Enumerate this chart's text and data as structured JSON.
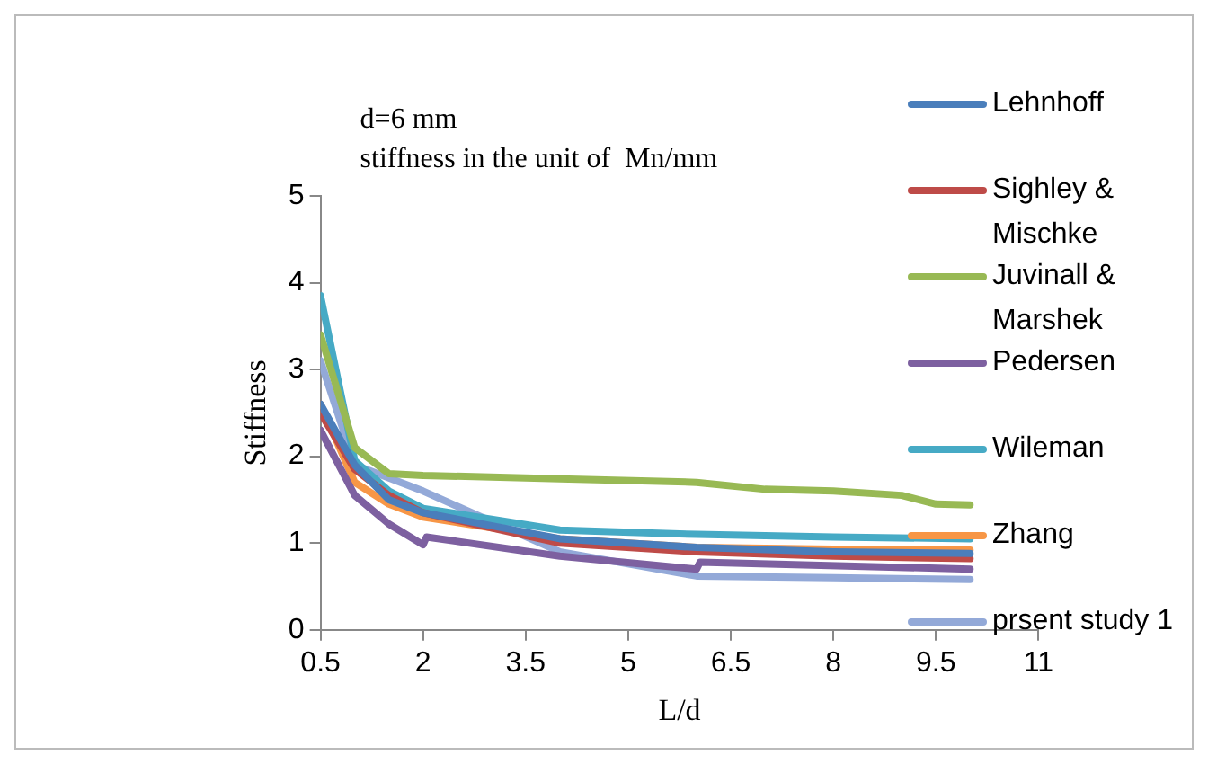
{
  "chart_data": {
    "type": "line",
    "xlabel": "L/d",
    "ylabel": "Stiffness",
    "annotations": [
      "d=6 mm",
      "stiffness in the unit of  Mn/mm"
    ],
    "xlim": [
      0.5,
      11
    ],
    "xticks": [
      0.5,
      2,
      3.5,
      5,
      6.5,
      8,
      9.5,
      11
    ],
    "ylim": [
      0,
      5
    ],
    "yticks": [
      0,
      1,
      2,
      3,
      4,
      5
    ],
    "grid": false,
    "legend": "right",
    "marker": "none",
    "series": [
      {
        "name": "Lehnhoff",
        "color": "#4a7ebb",
        "x": [
          0.5,
          1,
          1.5,
          2,
          4,
          6,
          8,
          10
        ],
        "values": [
          2.6,
          1.9,
          1.5,
          1.35,
          1.05,
          0.95,
          0.9,
          0.88
        ]
      },
      {
        "name": "Sighley & Mischke",
        "color": "#be4b48",
        "x": [
          0.5,
          1,
          1.5,
          2,
          4,
          6,
          8,
          10
        ],
        "values": [
          2.5,
          1.85,
          1.55,
          1.35,
          1.0,
          0.9,
          0.85,
          0.82
        ]
      },
      {
        "name": "Juvinall & Marshek",
        "color": "#98b954",
        "x": [
          0.5,
          1,
          1.5,
          2,
          4,
          6,
          7,
          8,
          9,
          9.5,
          10
        ],
        "values": [
          3.4,
          2.1,
          1.8,
          1.78,
          1.74,
          1.7,
          1.62,
          1.6,
          1.55,
          1.45,
          1.44
        ]
      },
      {
        "name": "Pedersen",
        "color": "#7d60a0",
        "x": [
          0.5,
          1,
          1.5,
          2,
          2.05,
          4,
          6,
          6.05,
          10
        ],
        "values": [
          2.3,
          1.55,
          1.22,
          0.98,
          1.07,
          0.85,
          0.7,
          0.78,
          0.7
        ]
      },
      {
        "name": "Wileman",
        "color": "#46aac5",
        "x": [
          0.5,
          1,
          1.5,
          2,
          4,
          6,
          8,
          10
        ],
        "values": [
          3.85,
          1.95,
          1.6,
          1.4,
          1.15,
          1.1,
          1.07,
          1.05
        ]
      },
      {
        "name": "Zhang",
        "color": "#f79646",
        "x": [
          0.5,
          1,
          1.5,
          2,
          4,
          6,
          8,
          10
        ],
        "values": [
          2.6,
          1.7,
          1.45,
          1.3,
          1.05,
          0.95,
          0.93,
          0.92
        ]
      },
      {
        "name": "prsent study 1",
        "color": "#93a9d8",
        "x": [
          0.5,
          1,
          2,
          4,
          6,
          8,
          10
        ],
        "values": [
          3.1,
          1.9,
          1.6,
          0.9,
          0.62,
          0.6,
          0.58
        ]
      }
    ]
  }
}
